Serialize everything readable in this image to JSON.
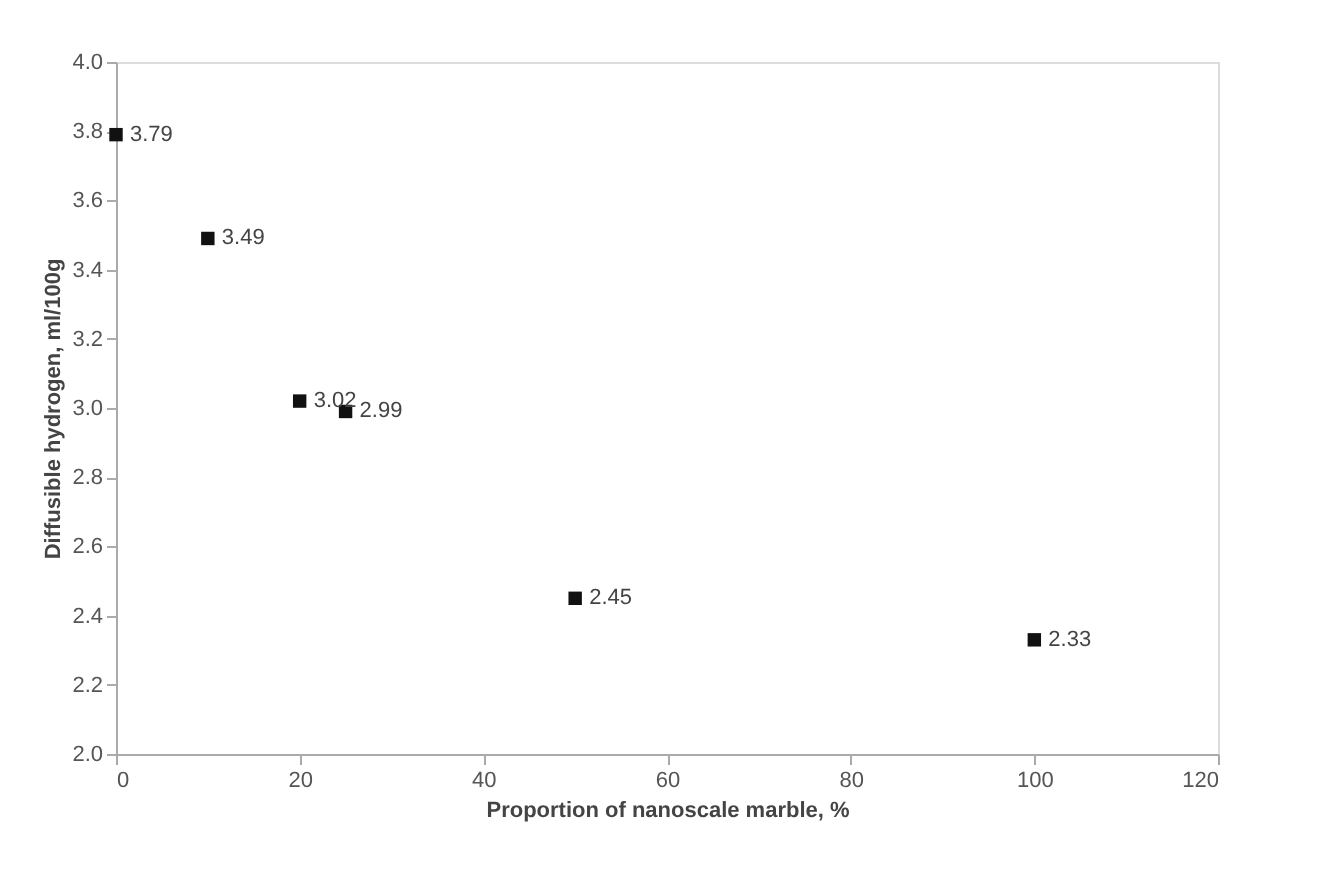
{
  "chart_data": {
    "type": "scatter",
    "xlabel": "Proportion of nanoscale marble, %",
    "ylabel": "Diffusible hydrogen, ml/100g",
    "x": [
      0,
      10,
      20,
      25,
      50,
      100
    ],
    "series": [
      {
        "color": "#111111",
        "values": [
          3.79,
          3.49,
          3.02,
          2.99,
          2.45,
          2.33
        ]
      }
    ],
    "xlim": [
      0,
      120
    ],
    "xticks": [
      0,
      20,
      40,
      60,
      80,
      100,
      120
    ],
    "ylim": [
      2.0,
      4.0
    ],
    "yticks": [
      {
        "value": 2.0,
        "label": "2.0"
      },
      2.2,
      2.4,
      2.6,
      2.8,
      {
        "value": 3.0,
        "label": "3.0"
      },
      3.2,
      3.4,
      3.6,
      3.8,
      {
        "value": 4.0,
        "label": "4.0"
      }
    ],
    "marker": "square",
    "data_labels": true,
    "grid": false
  }
}
